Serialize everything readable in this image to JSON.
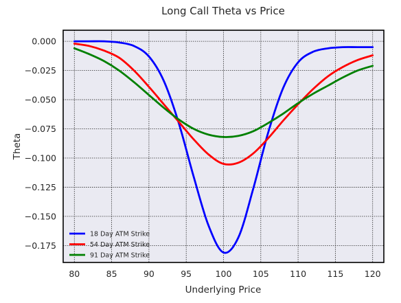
{
  "chart_data": {
    "type": "line",
    "title": "Long Call Theta vs Price",
    "xlabel": "Underlying Price",
    "ylabel": "Theta",
    "xlim": [
      78.5,
      121.5
    ],
    "ylim": [
      -0.1895,
      0.0095
    ],
    "xticks": [
      "80",
      "85",
      "90",
      "95",
      "100",
      "105",
      "110",
      "115",
      "120"
    ],
    "yticks": [
      "0.000",
      "−0.025",
      "−0.050",
      "−0.075",
      "−0.100",
      "−0.125",
      "−0.150",
      "−0.175"
    ],
    "grid": true,
    "legend": "lower-left",
    "background": "#eaeaf2",
    "x": [
      80,
      82,
      84,
      86,
      88,
      90,
      92,
      94,
      96,
      98,
      100,
      102,
      104,
      106,
      108,
      110,
      112,
      114,
      116,
      118,
      120
    ],
    "series": [
      {
        "name": "18 Day ATM Strike",
        "color": "#0000ff",
        "values": [
          0.0,
          0.0,
          0.0,
          -0.001,
          -0.004,
          -0.013,
          -0.034,
          -0.07,
          -0.116,
          -0.158,
          -0.181,
          -0.168,
          -0.126,
          -0.078,
          -0.04,
          -0.018,
          -0.009,
          -0.006,
          -0.005,
          -0.005,
          -0.005
        ]
      },
      {
        "name": "54 Day ATM Strike",
        "color": "#ff0000",
        "values": [
          -0.002,
          -0.004,
          -0.008,
          -0.014,
          -0.025,
          -0.039,
          -0.054,
          -0.069,
          -0.084,
          -0.097,
          -0.105,
          -0.104,
          -0.096,
          -0.083,
          -0.068,
          -0.054,
          -0.041,
          -0.03,
          -0.022,
          -0.016,
          -0.012
        ]
      },
      {
        "name": "91 Day ATM Strike",
        "color": "#008000",
        "values": [
          -0.006,
          -0.011,
          -0.017,
          -0.025,
          -0.035,
          -0.046,
          -0.057,
          -0.067,
          -0.075,
          -0.08,
          -0.082,
          -0.081,
          -0.077,
          -0.07,
          -0.062,
          -0.053,
          -0.045,
          -0.038,
          -0.031,
          -0.025,
          -0.021
        ]
      }
    ]
  }
}
